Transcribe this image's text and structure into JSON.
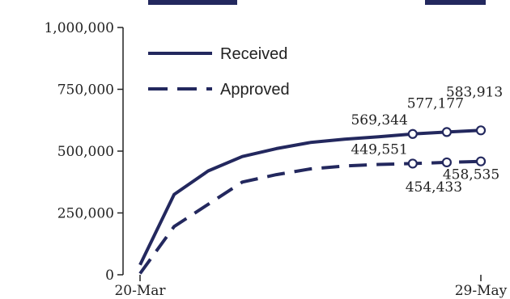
{
  "chart_data": {
    "type": "line",
    "x": [
      "20-Mar",
      "27-Mar",
      "3-Apr",
      "10-Apr",
      "17-Apr",
      "24-Apr",
      "1-May",
      "8-May",
      "15-May",
      "22-May",
      "29-May"
    ],
    "series": [
      {
        "name": "Received",
        "values": [
          40000,
          325000,
          420000,
          478000,
          510000,
          535000,
          548000,
          558000,
          569344,
          577177,
          583913
        ],
        "style": "solid",
        "color": "#23285e"
      },
      {
        "name": "Approved",
        "values": [
          5000,
          195000,
          285000,
          375000,
          405000,
          428000,
          440000,
          446000,
          449551,
          454433,
          458535
        ],
        "style": "dashed",
        "color": "#23285e"
      }
    ],
    "marked_points": [
      {
        "series": "Received",
        "x": "15-May",
        "y": 569344,
        "label": "569,344"
      },
      {
        "series": "Received",
        "x": "22-May",
        "y": 577177,
        "label": "577,177"
      },
      {
        "series": "Received",
        "x": "29-May",
        "y": 583913,
        "label": "583,913"
      },
      {
        "series": "Approved",
        "x": "15-May",
        "y": 449551,
        "label": "449,551"
      },
      {
        "series": "Approved",
        "x": "22-May",
        "y": 454433,
        "label": "454,433"
      },
      {
        "series": "Approved",
        "x": "29-May",
        "y": 458535,
        "label": "458,535"
      }
    ],
    "y_ticks": [
      {
        "value": 0,
        "label": "0"
      },
      {
        "value": 250000,
        "label": "250,000"
      },
      {
        "value": 500000,
        "label": "500,000"
      },
      {
        "value": 750000,
        "label": "750,000"
      },
      {
        "value": 1000000,
        "label": "1,000,000"
      }
    ],
    "x_ticks": [
      {
        "x": "20-Mar",
        "label": "20-Mar"
      },
      {
        "x": "29-May",
        "label": "29-May"
      }
    ],
    "ylim": [
      0,
      1000000
    ],
    "grid": false,
    "legend_placement": "top-left",
    "legend": [
      {
        "label": "Received",
        "style": "solid"
      },
      {
        "label": "Approved",
        "style": "dashed"
      }
    ]
  }
}
